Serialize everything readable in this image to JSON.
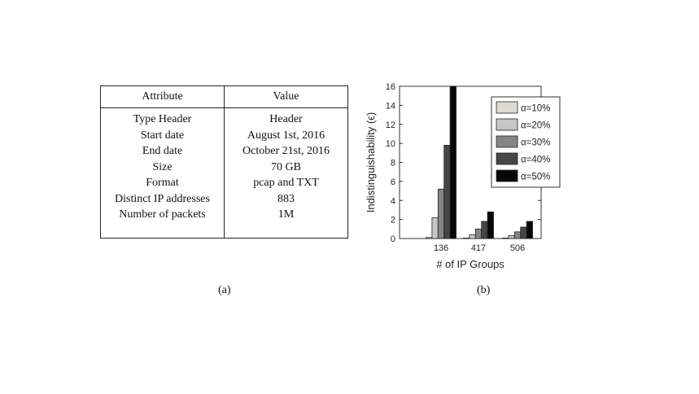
{
  "table": {
    "headers": [
      "Attribute",
      "Value"
    ],
    "rows": [
      {
        "attribute": "Type Header",
        "value": "Header"
      },
      {
        "attribute": "Start date",
        "value": "August 1st, 2016"
      },
      {
        "attribute": "End date",
        "value": "October 21st, 2016"
      },
      {
        "attribute": "Size",
        "value": "70 GB"
      },
      {
        "attribute": "Format",
        "value": "pcap and TXT"
      },
      {
        "attribute": "Distinct IP addresses",
        "value": "883"
      },
      {
        "attribute": "Number of packets",
        "value": "1M"
      }
    ]
  },
  "captions": {
    "a": "(a)",
    "b": "(b)"
  },
  "chart_data": {
    "type": "bar",
    "title": "",
    "xlabel": "# of IP Groups",
    "ylabel": "Indistinguishability (ϵ)",
    "categories": [
      "136",
      "417",
      "506"
    ],
    "ylim": [
      0,
      16
    ],
    "yticks": [
      0,
      2,
      4,
      6,
      8,
      10,
      12,
      14,
      16
    ],
    "grid": false,
    "legend_position": "top-right",
    "series": [
      {
        "name": "α=10%",
        "color": "#dedad2",
        "values": [
          0.1,
          0.05,
          0.05
        ]
      },
      {
        "name": "α=20%",
        "color": "#c6c6c6",
        "values": [
          2.2,
          0.4,
          0.3
        ]
      },
      {
        "name": "α=30%",
        "color": "#858585",
        "values": [
          5.2,
          1.0,
          0.7
        ]
      },
      {
        "name": "α=40%",
        "color": "#464646",
        "values": [
          9.8,
          1.8,
          1.2
        ]
      },
      {
        "name": "α=50%",
        "color": "#080808",
        "values": [
          16.0,
          2.8,
          1.8
        ]
      }
    ]
  }
}
